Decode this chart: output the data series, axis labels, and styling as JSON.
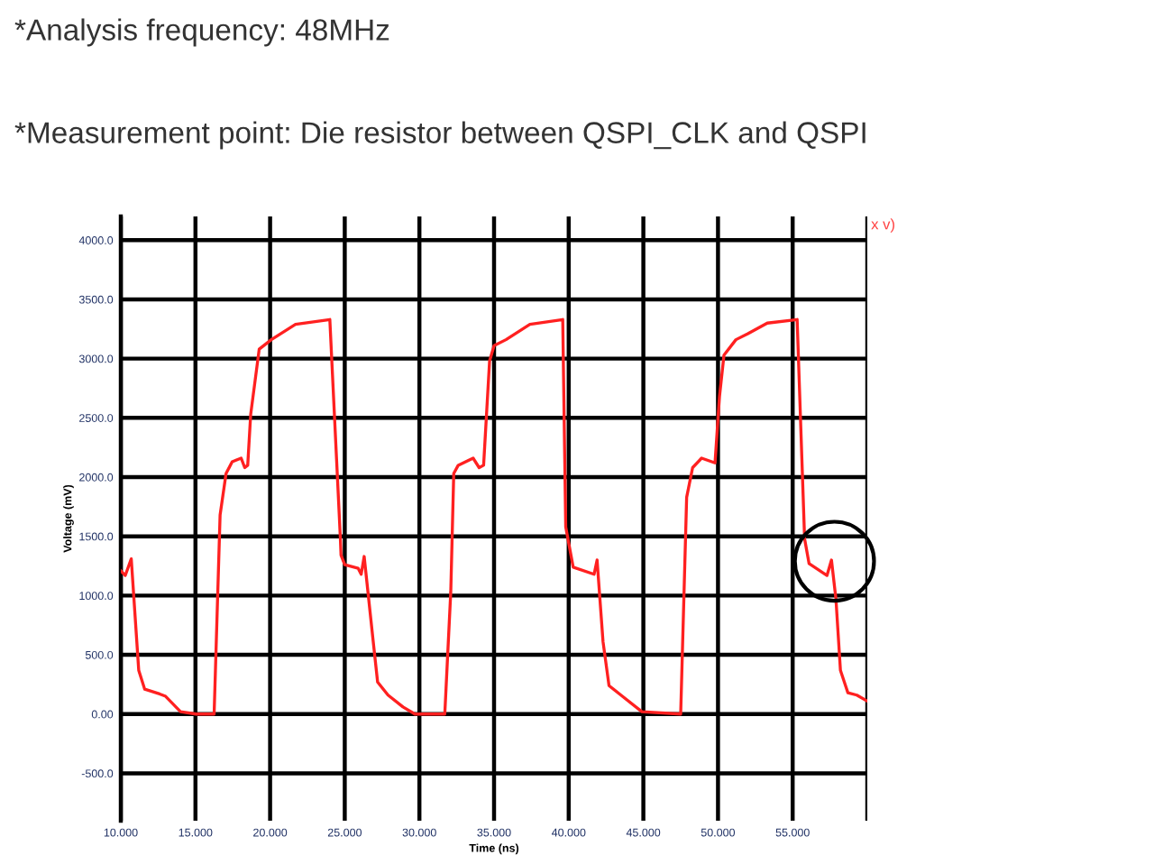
{
  "chart_data": {
    "type": "line",
    "title": "*Analysis frequency: 48MHz",
    "subtitle": "*Measurement point: Die resistor between QSPI_CLK and QSPI",
    "xlabel": "Time (ns)",
    "ylabel": "Voltage (mV)",
    "xlim": [
      10,
      60
    ],
    "ylim": [
      -900,
      4200
    ],
    "xticks": [
      {
        "value": 10,
        "label": "10.000"
      },
      {
        "value": 15,
        "label": "15.000"
      },
      {
        "value": 20,
        "label": "20.000"
      },
      {
        "value": 25,
        "label": "25.000"
      },
      {
        "value": 30,
        "label": "30.000"
      },
      {
        "value": 35,
        "label": "35.000"
      },
      {
        "value": 40,
        "label": "40.000"
      },
      {
        "value": 45,
        "label": "45.000"
      },
      {
        "value": 50,
        "label": "50.000"
      },
      {
        "value": 55,
        "label": "55.000"
      },
      {
        "value": 60,
        "label": null
      }
    ],
    "yticks": [
      {
        "value": -500,
        "label": "-500.0"
      },
      {
        "value": 0,
        "label": "0.00"
      },
      {
        "value": 500,
        "label": "500.0"
      },
      {
        "value": 1000,
        "label": "1000.0"
      },
      {
        "value": 1500,
        "label": "1500.0"
      },
      {
        "value": 2000,
        "label": "2000.0"
      },
      {
        "value": 2500,
        "label": "2500.0"
      },
      {
        "value": 3000,
        "label": "3000.0"
      },
      {
        "value": 3500,
        "label": "3500.0"
      },
      {
        "value": 4000,
        "label": "4000.0"
      }
    ],
    "grid": true,
    "legend": false,
    "marker": "none",
    "line_style": "solid",
    "annotations": [
      "x v)"
    ],
    "series": [
      {
        "color": "#ff2020",
        "x": [
          10.0,
          10.3,
          10.7,
          11.2,
          11.6,
          12.6,
          13.0,
          14.0,
          15.05,
          16.25,
          16.65,
          17.05,
          17.46,
          18.06,
          18.3,
          18.5,
          18.7,
          19.27,
          20.08,
          21.7,
          24.0,
          24.7,
          24.75,
          25.0,
          25.9,
          26.1,
          26.3,
          26.9,
          27.2,
          27.9,
          28.9,
          29.7,
          31.7,
          32.1,
          32.3,
          32.6,
          33.6,
          34.0,
          34.3,
          34.7,
          35.0,
          35.8,
          37.4,
          39.6,
          39.8,
          40.3,
          41.7,
          41.9,
          42.3,
          42.7,
          43.5,
          44.9,
          47.5,
          47.9,
          48.3,
          48.9,
          49.8,
          50.1,
          50.4,
          51.2,
          52.0,
          53.3,
          55.3,
          55.8,
          56.1,
          57.3,
          57.6,
          57.9,
          58.2,
          58.7,
          59.3,
          60.0
        ],
        "values": [
          1210,
          1170,
          1310,
          370,
          210,
          170,
          150,
          20,
          0,
          0,
          1680,
          2030,
          2130,
          2160,
          2080,
          2100,
          2530,
          3080,
          3160,
          3290,
          3330,
          1500,
          1340,
          1260,
          1230,
          1180,
          1330,
          620,
          270,
          160,
          60,
          0,
          0,
          1030,
          2030,
          2100,
          2160,
          2080,
          2100,
          2980,
          3110,
          3160,
          3290,
          3330,
          1580,
          1240,
          1180,
          1300,
          610,
          240,
          160,
          20,
          0,
          1830,
          2080,
          2160,
          2120,
          2680,
          3030,
          3160,
          3210,
          3300,
          3330,
          1480,
          1270,
          1170,
          1300,
          970,
          370,
          180,
          160,
          110
        ]
      }
    ]
  }
}
